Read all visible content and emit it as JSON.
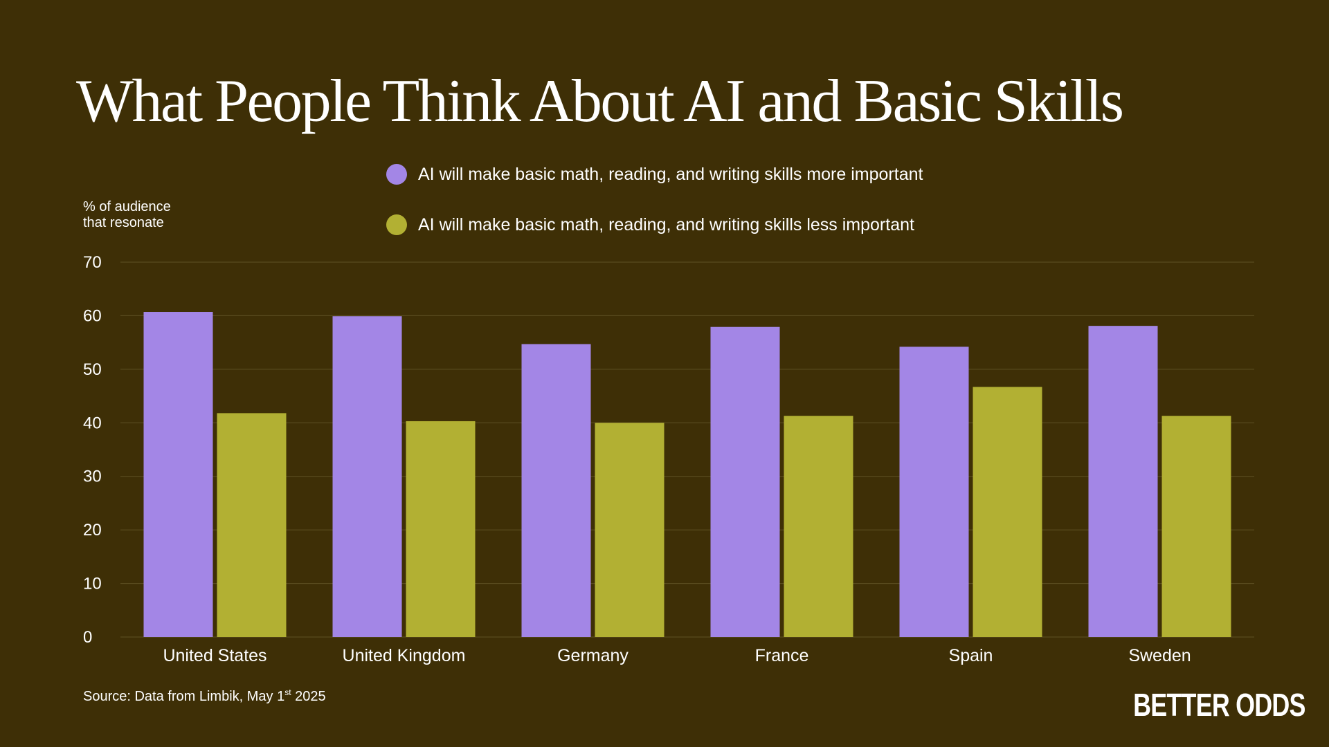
{
  "title": "What People Think About AI and Basic Skills",
  "source_label": "Source: Data from Limbik, May 1",
  "source_sup": "st",
  "source_year": " 2025",
  "brand": "BETTER ODDS",
  "colors": {
    "background": "#3e2f06",
    "series_more": "#a386e6",
    "series_less": "#b2b033",
    "gridline": "#5e5124"
  },
  "chart_data": {
    "type": "bar",
    "ylabel": "% of audience\nthat resonate",
    "xlabel": "",
    "ylim": [
      0,
      70
    ],
    "yticks": [
      0,
      10,
      20,
      30,
      40,
      50,
      60,
      70
    ],
    "grid": true,
    "legend_position": "top",
    "categories": [
      "United States",
      "United Kingdom",
      "Germany",
      "France",
      "Spain",
      "Sweden"
    ],
    "series": [
      {
        "name": "AI will make basic math, reading, and writing skills more important",
        "values": [
          60.7,
          59.9,
          54.7,
          57.9,
          54.2,
          58.1
        ]
      },
      {
        "name": "AI will make basic math, reading, and writing skills less important",
        "values": [
          41.8,
          40.3,
          40.0,
          41.3,
          46.7,
          41.3
        ]
      }
    ]
  }
}
